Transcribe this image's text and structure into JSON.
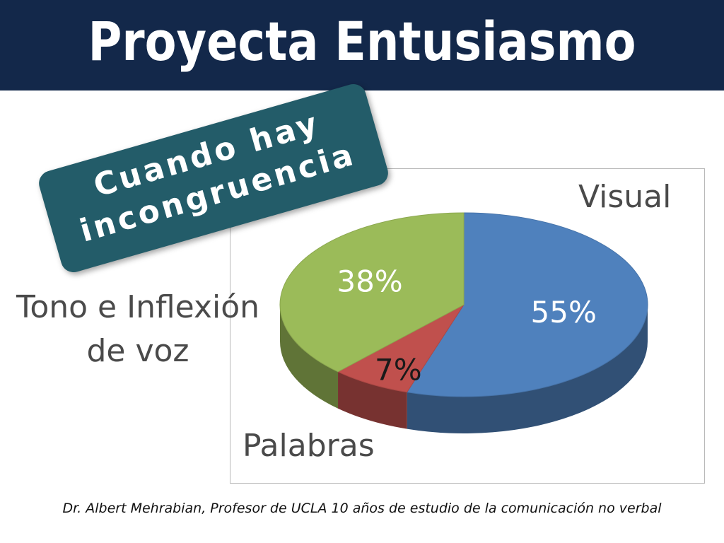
{
  "header": {
    "title": "Proyecta Entusiasmo"
  },
  "badge": {
    "line1": "Cuando hay",
    "line2": "incongruencia"
  },
  "labels": {
    "visual": "Visual",
    "tono_line1": "Tono e Inflexión",
    "tono_line2": "de voz",
    "palabras": "Palabras"
  },
  "footnote": "Dr. Albert Mehrabian, Profesor de UCLA 10 años de estudio de la comunicación no verbal",
  "colors": {
    "header_bg": "#13284a",
    "badge_bg": "#235c69",
    "visual": "#4f81bd",
    "palabras": "#c0504d",
    "tono": "#9bbb59"
  },
  "chart_data": {
    "type": "pie",
    "style": "3d-pie",
    "categories": [
      "Visual",
      "Palabras",
      "Tono e Inflexión de voz"
    ],
    "values": [
      55,
      7,
      38
    ],
    "data_labels": [
      "55%",
      "7%",
      "38%"
    ],
    "colors": [
      "#4f81bd",
      "#c0504d",
      "#9bbb59"
    ],
    "legend": "none"
  }
}
